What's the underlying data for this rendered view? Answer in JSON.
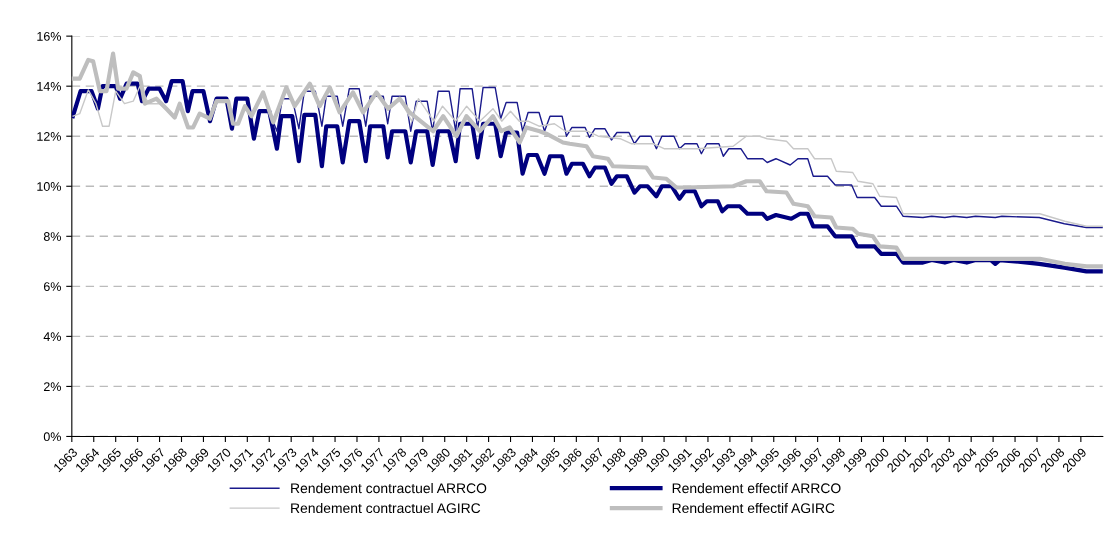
{
  "chart_data": {
    "type": "line",
    "xlim": [
      1963,
      2010
    ],
    "xticks": [
      1963,
      1964,
      1965,
      1966,
      1967,
      1968,
      1969,
      1970,
      1971,
      1972,
      1973,
      1974,
      1975,
      1976,
      1977,
      1978,
      1979,
      1980,
      1981,
      1982,
      1983,
      1984,
      1985,
      1986,
      1987,
      1988,
      1989,
      1990,
      1991,
      1992,
      1993,
      1994,
      1995,
      1996,
      1997,
      1998,
      1999,
      2000,
      2001,
      2002,
      2003,
      2004,
      2005,
      2006,
      2007,
      2008,
      2009
    ],
    "ylim": [
      0,
      16
    ],
    "yticks": [
      {
        "value": 0,
        "label": "0%"
      },
      {
        "value": 2,
        "label": "2%"
      },
      {
        "value": 4,
        "label": "4%"
      },
      {
        "value": 6,
        "label": "6%"
      },
      {
        "value": 8,
        "label": "8%"
      },
      {
        "value": 10,
        "label": "10%"
      },
      {
        "value": 12,
        "label": "12%"
      },
      {
        "value": 14,
        "label": "14%"
      },
      {
        "value": 16,
        "label": "16%"
      }
    ],
    "grid": "y",
    "legend": "bottom",
    "marker": "none",
    "series": [
      {
        "name": "Rendement contractuel ARRCO",
        "color": "#1a1a8c",
        "x": [
          1963.05,
          1963.4,
          1963.9,
          1964.19,
          1964.4,
          1965.0,
          1965.2,
          1965.5,
          1966.0,
          1966.2,
          1966.5,
          1967.0,
          1967.3,
          1967.55,
          1968.05,
          1968.29,
          1968.5,
          1969.0,
          1969.3,
          1969.6,
          1970.05,
          1970.3,
          1970.5,
          1971.0,
          1971.3,
          1971.55,
          1972.0,
          1972.35,
          1972.6,
          1973.05,
          1973.35,
          1973.6,
          1974.1,
          1974.4,
          1974.6,
          1975.1,
          1975.35,
          1975.65,
          1976.1,
          1976.4,
          1976.6,
          1977.2,
          1977.4,
          1977.6,
          1978.2,
          1978.45,
          1978.7,
          1979.2,
          1979.45,
          1979.7,
          1980.2,
          1980.5,
          1980.7,
          1981.25,
          1981.5,
          1981.75,
          1982.3,
          1982.55,
          1982.8,
          1983.3,
          1983.55,
          1983.8,
          1984.3,
          1984.55,
          1984.8,
          1985.35,
          1985.55,
          1985.8,
          1986.4,
          1986.6,
          1986.85,
          1987.3,
          1987.6,
          1987.85,
          1988.4,
          1988.65,
          1988.9,
          1989.4,
          1989.65,
          1989.9,
          1990.45,
          1990.7,
          1990.95,
          1991.5,
          1991.7,
          1991.95,
          1992.5,
          1992.7,
          1992.95,
          1993.5,
          1993.8,
          1994.5,
          1994.7,
          1995.1,
          1995.75,
          1996.1,
          1996.55,
          1996.8,
          1997.45,
          1997.8,
          1998.55,
          1998.8,
          1999.6,
          1999.9,
          2000.6,
          2000.9,
          2001.8,
          2002.2,
          2002.8,
          2003.2,
          2003.8,
          2004.2,
          2005.1,
          2005.4,
          2007.1,
          2008.25,
          2009.25,
          2010.0
        ],
        "values": [
          12.8,
          13.8,
          13.8,
          13.1,
          14.0,
          14.0,
          13.5,
          14.1,
          14.1,
          13.4,
          13.9,
          13.9,
          13.4,
          14.2,
          14.2,
          13.0,
          13.8,
          13.8,
          12.6,
          13.5,
          13.5,
          12.3,
          13.5,
          13.5,
          11.9,
          13.0,
          13.0,
          12.2,
          13.5,
          13.5,
          12.3,
          13.8,
          13.8,
          12.4,
          13.6,
          13.6,
          12.4,
          13.9,
          13.9,
          12.4,
          13.6,
          13.6,
          12.5,
          13.6,
          13.6,
          12.2,
          13.4,
          13.4,
          12.2,
          13.8,
          13.8,
          12.2,
          13.9,
          13.9,
          12.3,
          13.95,
          13.95,
          12.7,
          13.35,
          13.35,
          12.2,
          12.95,
          12.95,
          12.2,
          12.8,
          12.8,
          12.0,
          12.35,
          12.35,
          11.95,
          12.3,
          12.3,
          11.85,
          12.15,
          12.15,
          11.7,
          12.0,
          12.0,
          11.5,
          12.0,
          12.0,
          11.5,
          11.7,
          11.7,
          11.3,
          11.7,
          11.7,
          11.2,
          11.5,
          11.5,
          11.1,
          11.1,
          10.95,
          11.1,
          10.85,
          11.1,
          11.1,
          10.4,
          10.4,
          10.05,
          10.05,
          9.55,
          9.55,
          9.2,
          9.2,
          8.8,
          8.75,
          8.8,
          8.75,
          8.8,
          8.75,
          8.8,
          8.75,
          8.8,
          8.75,
          8.5,
          8.35,
          8.35
        ]
      },
      {
        "name": "Rendement effectif ARRCO",
        "color": "#00007f",
        "x": [
          1963.05,
          1963.4,
          1963.9,
          1964.19,
          1964.4,
          1965.0,
          1965.2,
          1965.5,
          1966.0,
          1966.2,
          1966.5,
          1967.0,
          1967.3,
          1967.55,
          1968.05,
          1968.29,
          1968.5,
          1969.0,
          1969.3,
          1969.6,
          1970.05,
          1970.3,
          1970.5,
          1971.0,
          1971.3,
          1971.55,
          1972.0,
          1972.35,
          1972.55,
          1973.05,
          1973.35,
          1973.6,
          1974.1,
          1974.4,
          1974.6,
          1975.1,
          1975.35,
          1975.65,
          1976.1,
          1976.4,
          1976.6,
          1977.2,
          1977.4,
          1977.6,
          1978.2,
          1978.45,
          1978.7,
          1979.2,
          1979.45,
          1979.7,
          1980.2,
          1980.5,
          1980.7,
          1981.25,
          1981.5,
          1981.75,
          1982.3,
          1982.55,
          1982.8,
          1983.3,
          1983.55,
          1983.8,
          1984.2,
          1984.55,
          1984.8,
          1985.35,
          1985.55,
          1985.8,
          1986.3,
          1986.6,
          1986.85,
          1987.3,
          1987.6,
          1987.85,
          1988.3,
          1988.65,
          1988.9,
          1989.25,
          1989.65,
          1989.9,
          1990.35,
          1990.7,
          1990.95,
          1991.4,
          1991.7,
          1991.95,
          1992.45,
          1992.65,
          1992.9,
          1993.45,
          1993.8,
          1994.5,
          1994.7,
          1995.1,
          1995.8,
          1996.2,
          1996.55,
          1996.8,
          1997.45,
          1997.8,
          1998.55,
          1998.8,
          1999.6,
          1999.9,
          2000.6,
          2000.9,
          2001.8,
          2002.2,
          2002.8,
          2003.2,
          2003.8,
          2004.2,
          2004.9,
          2005.1,
          2005.3,
          2006.0,
          2007.1,
          2008.25,
          2009.25,
          2010.0
        ],
        "values": [
          12.8,
          13.8,
          13.8,
          13.1,
          14.0,
          14.0,
          13.5,
          14.1,
          14.1,
          13.4,
          13.9,
          13.9,
          13.4,
          14.2,
          14.2,
          13.0,
          13.8,
          13.8,
          12.6,
          13.5,
          13.5,
          12.3,
          13.5,
          13.5,
          11.9,
          13.0,
          13.0,
          11.5,
          12.8,
          12.8,
          11.0,
          12.85,
          12.85,
          10.8,
          12.4,
          12.4,
          10.95,
          12.6,
          12.6,
          11.0,
          12.4,
          12.4,
          11.15,
          12.2,
          12.2,
          10.95,
          12.2,
          12.2,
          10.85,
          12.2,
          12.2,
          11.0,
          12.5,
          12.5,
          11.15,
          12.5,
          12.5,
          11.2,
          12.15,
          12.15,
          10.5,
          11.25,
          11.25,
          10.5,
          11.2,
          11.2,
          10.5,
          10.9,
          10.9,
          10.4,
          10.75,
          10.75,
          10.1,
          10.4,
          10.4,
          9.75,
          10.0,
          10.0,
          9.6,
          10.0,
          10.0,
          9.5,
          9.8,
          9.8,
          9.2,
          9.4,
          9.4,
          9.0,
          9.2,
          9.2,
          8.9,
          8.9,
          8.7,
          8.85,
          8.7,
          8.9,
          8.9,
          8.4,
          8.4,
          8.0,
          8.0,
          7.6,
          7.6,
          7.3,
          7.3,
          6.95,
          6.95,
          7.05,
          6.95,
          7.05,
          6.95,
          7.05,
          7.05,
          6.9,
          7.05,
          7.0,
          6.9,
          6.75,
          6.6,
          6.6
        ]
      },
      {
        "name": "Rendement contractuel AGIRC",
        "color": "#c8c8c8",
        "x": [
          1963.06,
          1963.36,
          1963.75,
          1964.1,
          1964.4,
          1964.7,
          1965.0,
          1965.4,
          1965.8,
          1966.1,
          1966.5,
          1967.0,
          1967.31,
          1967.69,
          1967.92,
          1968.3,
          1968.53,
          1968.83,
          1969.29,
          1969.59,
          1970.13,
          1970.35,
          1970.58,
          1970.89,
          1971.19,
          1971.72,
          1972.18,
          1972.78,
          1973.16,
          1973.85,
          1974.3,
          1974.76,
          1975.21,
          1975.82,
          1976.28,
          1976.89,
          1977.42,
          1977.95,
          1978.5,
          1978.8,
          1979.5,
          1979.9,
          1980.5,
          1981.0,
          1981.6,
          1982.2,
          1982.6,
          1983.0,
          1983.4,
          1983.8,
          1984.3,
          1985.0,
          1985.5,
          1986.5,
          1987.0,
          1988.0,
          1988.5,
          1989.5,
          1990.0,
          1991.5,
          1993.15,
          1993.75,
          1994.36,
          1994.7,
          1995.58,
          1995.9,
          1996.55,
          1996.86,
          1997.62,
          1997.85,
          1998.6,
          1998.84,
          1999.52,
          1999.83,
          2000.59,
          2000.9,
          2007.13,
          2008.27,
          2009.26,
          2010.0
        ],
        "values": [
          12.8,
          12.9,
          13.85,
          13.3,
          12.4,
          12.4,
          13.8,
          13.3,
          13.4,
          14.0,
          13.3,
          13.3,
          13.1,
          12.75,
          13.3,
          12.35,
          12.35,
          12.9,
          12.7,
          13.4,
          13.4,
          12.5,
          12.5,
          13.2,
          12.8,
          13.75,
          12.55,
          13.95,
          13.2,
          14.1,
          13.2,
          13.95,
          12.95,
          13.75,
          12.95,
          13.75,
          13.1,
          13.5,
          12.6,
          13.5,
          12.6,
          13.2,
          12.6,
          13.2,
          12.6,
          13.1,
          12.6,
          13.0,
          12.6,
          12.6,
          12.4,
          12.5,
          12.2,
          12.2,
          12.0,
          11.9,
          11.7,
          11.7,
          11.5,
          11.5,
          11.6,
          12.0,
          12.0,
          11.9,
          11.8,
          11.5,
          11.5,
          11.1,
          11.1,
          10.6,
          10.55,
          10.2,
          10.1,
          9.6,
          9.55,
          8.9,
          8.9,
          8.6,
          8.4,
          8.4
        ]
      },
      {
        "name": "Rendement effectif AGIRC",
        "color": "#bebebe",
        "x": [
          1963.06,
          1963.36,
          1963.75,
          1963.97,
          1964.28,
          1964.58,
          1964.88,
          1965.11,
          1965.49,
          1965.8,
          1966.1,
          1966.33,
          1966.86,
          1967.31,
          1967.69,
          1967.92,
          1968.3,
          1968.53,
          1968.83,
          1969.29,
          1969.59,
          1970.13,
          1970.35,
          1970.58,
          1970.89,
          1971.19,
          1971.72,
          1972.18,
          1972.78,
          1973.16,
          1973.85,
          1974.3,
          1974.76,
          1975.21,
          1975.82,
          1976.28,
          1976.89,
          1977.42,
          1977.95,
          1978.4,
          1979.47,
          1979.93,
          1980.53,
          1980.99,
          1981.6,
          1982.2,
          1982.58,
          1982.96,
          1983.42,
          1983.72,
          1984.33,
          1984.63,
          1985.39,
          1985.7,
          1986.46,
          1986.76,
          1987.44,
          1987.67,
          1989.19,
          1989.5,
          1990.1,
          1990.56,
          1991.02,
          1993.15,
          1993.75,
          1994.36,
          1994.67,
          1995.58,
          1995.9,
          1996.55,
          1996.86,
          1997.62,
          1997.85,
          1998.6,
          1998.84,
          1999.52,
          1999.83,
          2000.59,
          2000.9,
          2007.13,
          2008.27,
          2009.26,
          2010.0
        ],
        "values": [
          14.3,
          14.3,
          15.05,
          15.0,
          13.8,
          13.8,
          15.3,
          13.9,
          13.9,
          14.55,
          14.4,
          13.3,
          13.5,
          13.1,
          12.75,
          13.3,
          12.35,
          12.35,
          12.9,
          12.7,
          13.4,
          13.4,
          12.5,
          12.5,
          13.2,
          12.8,
          13.75,
          12.55,
          13.95,
          13.2,
          14.1,
          13.2,
          13.95,
          12.95,
          13.75,
          12.95,
          13.75,
          13.1,
          13.5,
          12.95,
          12.2,
          12.8,
          12.0,
          12.8,
          12.2,
          12.8,
          12.2,
          12.35,
          11.75,
          12.35,
          12.2,
          12.1,
          11.75,
          11.7,
          11.6,
          11.2,
          11.1,
          10.8,
          10.75,
          10.35,
          10.3,
          9.95,
          9.95,
          10.0,
          10.2,
          10.2,
          9.8,
          9.75,
          9.3,
          9.2,
          8.8,
          8.75,
          8.35,
          8.3,
          8.1,
          8.0,
          7.6,
          7.55,
          7.1,
          7.1,
          6.9,
          6.8,
          6.8
        ]
      }
    ]
  }
}
